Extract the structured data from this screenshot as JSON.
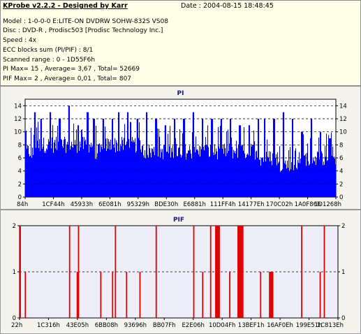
{
  "header": {
    "title": "KProbe v2.2.2 - Designed by Karr",
    "date": "Date : 2004-08-15 18:48:45",
    "lines": [
      "Model : 1-0-0-0 E:LITE-ON DVDRW SOHW-832S  VS08",
      "Disc : DVD-R , Prodisc503   [Prodisc Technology Inc.]",
      "Speed : 4x",
      "ECC blocks sum (PI/PIF) : 8/1",
      "Scanned range : 0 - 1D55F6h",
      "PI Max= 15 , Average= 3,67 , Total= 52669",
      "PIF Max= 2 , Average= 0,01 , Total= 807"
    ]
  },
  "colors": {
    "pi_fill": "#0000ff",
    "pif_fill": "#e00000",
    "plot_bg": "#ffffff",
    "pif_plot_bg": "#eeeef8",
    "grid": "#000000"
  },
  "chart_data": [
    {
      "type": "bar",
      "title": "PI",
      "xlabel": "",
      "ylabel": "",
      "ylim": [
        0,
        15
      ],
      "y_ticks": [
        "0",
        "2",
        "4",
        "6",
        "8",
        "10",
        "12",
        "14"
      ],
      "x_ticks": [
        "84h",
        "1CF44h",
        "45933h",
        "6E081h",
        "95329h",
        "BDE30h",
        "E6881h",
        "111FF4h",
        "14177Eh",
        "170C02h",
        "1A0F86h",
        "1D1268h"
      ],
      "grid": "dashed-horizontal",
      "x_range": [
        0,
        1
      ],
      "baseline": [
        7,
        8,
        8,
        8,
        8,
        8,
        8,
        7,
        8,
        8,
        8,
        8,
        7,
        7,
        7,
        7,
        7,
        7,
        7,
        7,
        7,
        7,
        7,
        7,
        6,
        6,
        5,
        5,
        6,
        6,
        6,
        6
      ],
      "peaks": [
        {
          "x": 0.0,
          "y": 10
        },
        {
          "x": 0.03,
          "y": 13
        },
        {
          "x": 0.05,
          "y": 12
        },
        {
          "x": 0.08,
          "y": 13
        },
        {
          "x": 0.11,
          "y": 12
        },
        {
          "x": 0.14,
          "y": 14
        },
        {
          "x": 0.17,
          "y": 11
        },
        {
          "x": 0.2,
          "y": 13
        },
        {
          "x": 0.22,
          "y": 12
        },
        {
          "x": 0.25,
          "y": 12
        },
        {
          "x": 0.28,
          "y": 12
        },
        {
          "x": 0.3,
          "y": 13
        },
        {
          "x": 0.33,
          "y": 13
        },
        {
          "x": 0.36,
          "y": 12
        },
        {
          "x": 0.39,
          "y": 13
        },
        {
          "x": 0.42,
          "y": 12
        },
        {
          "x": 0.45,
          "y": 11
        },
        {
          "x": 0.48,
          "y": 12
        },
        {
          "x": 0.51,
          "y": 12
        },
        {
          "x": 0.54,
          "y": 13
        },
        {
          "x": 0.57,
          "y": 12
        },
        {
          "x": 0.6,
          "y": 12
        },
        {
          "x": 0.63,
          "y": 12
        },
        {
          "x": 0.66,
          "y": 12
        },
        {
          "x": 0.69,
          "y": 11
        },
        {
          "x": 0.72,
          "y": 11
        },
        {
          "x": 0.75,
          "y": 12
        },
        {
          "x": 0.77,
          "y": 12
        },
        {
          "x": 0.8,
          "y": 12
        },
        {
          "x": 0.83,
          "y": 13
        },
        {
          "x": 0.86,
          "y": 12
        },
        {
          "x": 0.89,
          "y": 10
        },
        {
          "x": 0.92,
          "y": 12
        },
        {
          "x": 0.95,
          "y": 10
        },
        {
          "x": 0.98,
          "y": 9
        }
      ]
    },
    {
      "type": "bar",
      "title": "PIF",
      "xlabel": "",
      "ylabel": "",
      "ylim": [
        0,
        2
      ],
      "y_ticks": [
        "0",
        "1",
        "2"
      ],
      "x_ticks": [
        "22h",
        "1C316h",
        "43E05h",
        "6BB08h",
        "93696h",
        "BB07Fh",
        "E2E06h",
        "10D04Fh",
        "13BEF1h",
        "16AF0Eh",
        "199E51h",
        "1C813Eh"
      ],
      "grid": "dashed-horizontal",
      "x_range": [
        0,
        1
      ],
      "spikes": [
        {
          "x": 0.002,
          "y": 2
        },
        {
          "x": 0.018,
          "y": 1
        },
        {
          "x": 0.157,
          "y": 2
        },
        {
          "x": 0.181,
          "y": 1
        },
        {
          "x": 0.185,
          "y": 2
        },
        {
          "x": 0.255,
          "y": 1
        },
        {
          "x": 0.292,
          "y": 1
        },
        {
          "x": 0.301,
          "y": 2
        },
        {
          "x": 0.336,
          "y": 1
        },
        {
          "x": 0.378,
          "y": 1
        },
        {
          "x": 0.429,
          "y": 2
        },
        {
          "x": 0.547,
          "y": 2
        },
        {
          "x": 0.575,
          "y": 1
        },
        {
          "x": 0.6,
          "y": 2
        },
        {
          "x": 0.616,
          "y": 2
        },
        {
          "x": 0.618,
          "y": 2
        },
        {
          "x": 0.62,
          "y": 2
        },
        {
          "x": 0.622,
          "y": 2
        },
        {
          "x": 0.625,
          "y": 2
        },
        {
          "x": 0.627,
          "y": 2
        },
        {
          "x": 0.66,
          "y": 1
        },
        {
          "x": 0.686,
          "y": 2
        },
        {
          "x": 0.689,
          "y": 2
        },
        {
          "x": 0.692,
          "y": 2
        },
        {
          "x": 0.695,
          "y": 2
        },
        {
          "x": 0.698,
          "y": 2
        },
        {
          "x": 0.701,
          "y": 2
        },
        {
          "x": 0.757,
          "y": 1
        },
        {
          "x": 0.785,
          "y": 1
        },
        {
          "x": 0.789,
          "y": 1
        },
        {
          "x": 0.792,
          "y": 1
        },
        {
          "x": 0.795,
          "y": 1
        },
        {
          "x": 0.886,
          "y": 2
        },
        {
          "x": 0.944,
          "y": 1
        },
        {
          "x": 0.957,
          "y": 2
        }
      ]
    }
  ]
}
